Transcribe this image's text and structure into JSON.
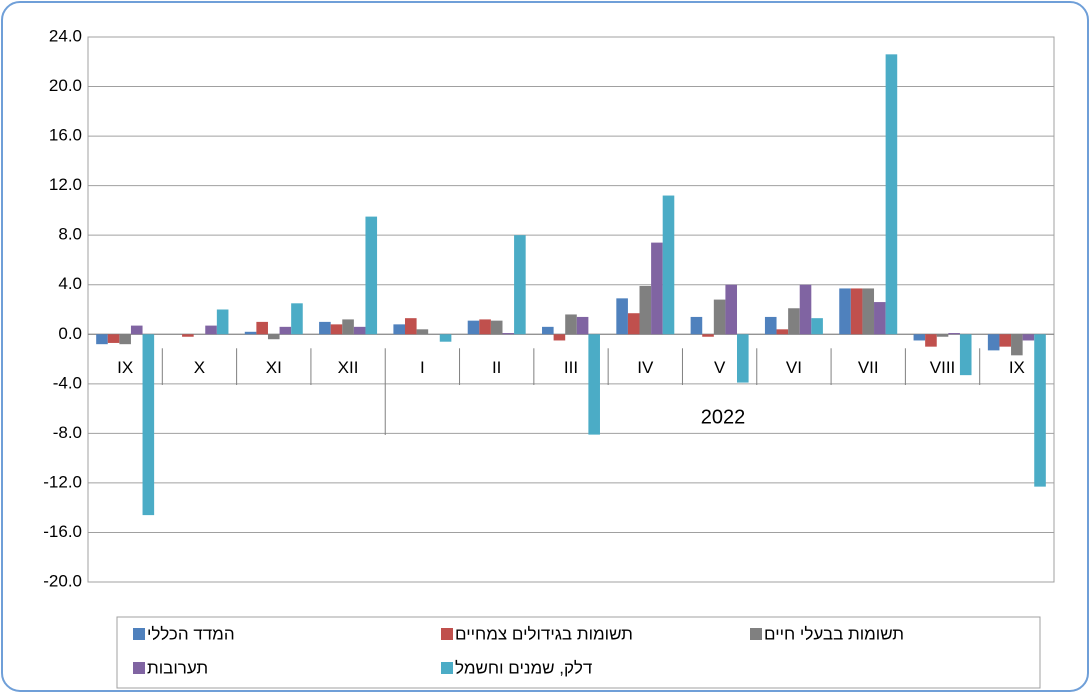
{
  "chart_data": {
    "type": "bar",
    "categories": [
      "IX",
      "X",
      "XI",
      "XII",
      "I",
      "II",
      "III",
      "IV",
      "V",
      "VI",
      "VII",
      "VIII",
      "IX"
    ],
    "year_label": "2022",
    "series": [
      {
        "name": "המדד הכללי",
        "color": "#4f81bd",
        "values": [
          -0.8,
          0.0,
          0.2,
          1.0,
          0.8,
          1.1,
          0.6,
          2.9,
          1.4,
          1.4,
          3.7,
          -0.5,
          -1.3
        ]
      },
      {
        "name": "תשומות בגידולים צמחיים",
        "color": "#c0504d",
        "values": [
          -0.7,
          -0.2,
          1.0,
          0.8,
          1.3,
          1.2,
          -0.5,
          1.7,
          -0.2,
          0.4,
          3.7,
          -1.0,
          -1.0
        ]
      },
      {
        "name": "תשומות בבעלי חיים",
        "color": "#808080",
        "values": [
          -0.8,
          0.0,
          -0.4,
          1.2,
          0.4,
          1.1,
          1.6,
          3.9,
          2.8,
          2.1,
          3.7,
          -0.2,
          -1.7
        ]
      },
      {
        "name": "תערובות",
        "color": "#8064a2",
        "values": [
          0.7,
          0.7,
          0.6,
          0.6,
          0.0,
          0.1,
          1.4,
          7.4,
          4.0,
          4.0,
          2.6,
          0.1,
          -0.5
        ]
      },
      {
        "name": "דלק, שמנים וחשמל",
        "color": "#4bacc6",
        "values": [
          -14.6,
          2.0,
          2.5,
          9.5,
          -0.6,
          8.0,
          -8.1,
          11.2,
          -3.9,
          1.3,
          22.6,
          -3.3,
          -12.3
        ]
      }
    ],
    "ylim": [
      -20,
      24
    ],
    "yticks": [
      {
        "value": -20,
        "label": "-20.0"
      },
      {
        "value": -16,
        "label": "-16.0"
      },
      {
        "value": -12,
        "label": "-12.0"
      },
      {
        "value": -8,
        "label": "-8.0"
      },
      {
        "value": -4,
        "label": "-4.0"
      },
      {
        "value": 0,
        "label": "0.0"
      },
      {
        "value": 4,
        "label": "4.0"
      },
      {
        "value": 8,
        "label": "8.0"
      },
      {
        "value": 12,
        "label": "12.0"
      },
      {
        "value": 16,
        "label": "16.0"
      },
      {
        "value": 20,
        "label": "20.0"
      },
      {
        "value": 24,
        "label": "24.0"
      }
    ],
    "grid": true
  }
}
